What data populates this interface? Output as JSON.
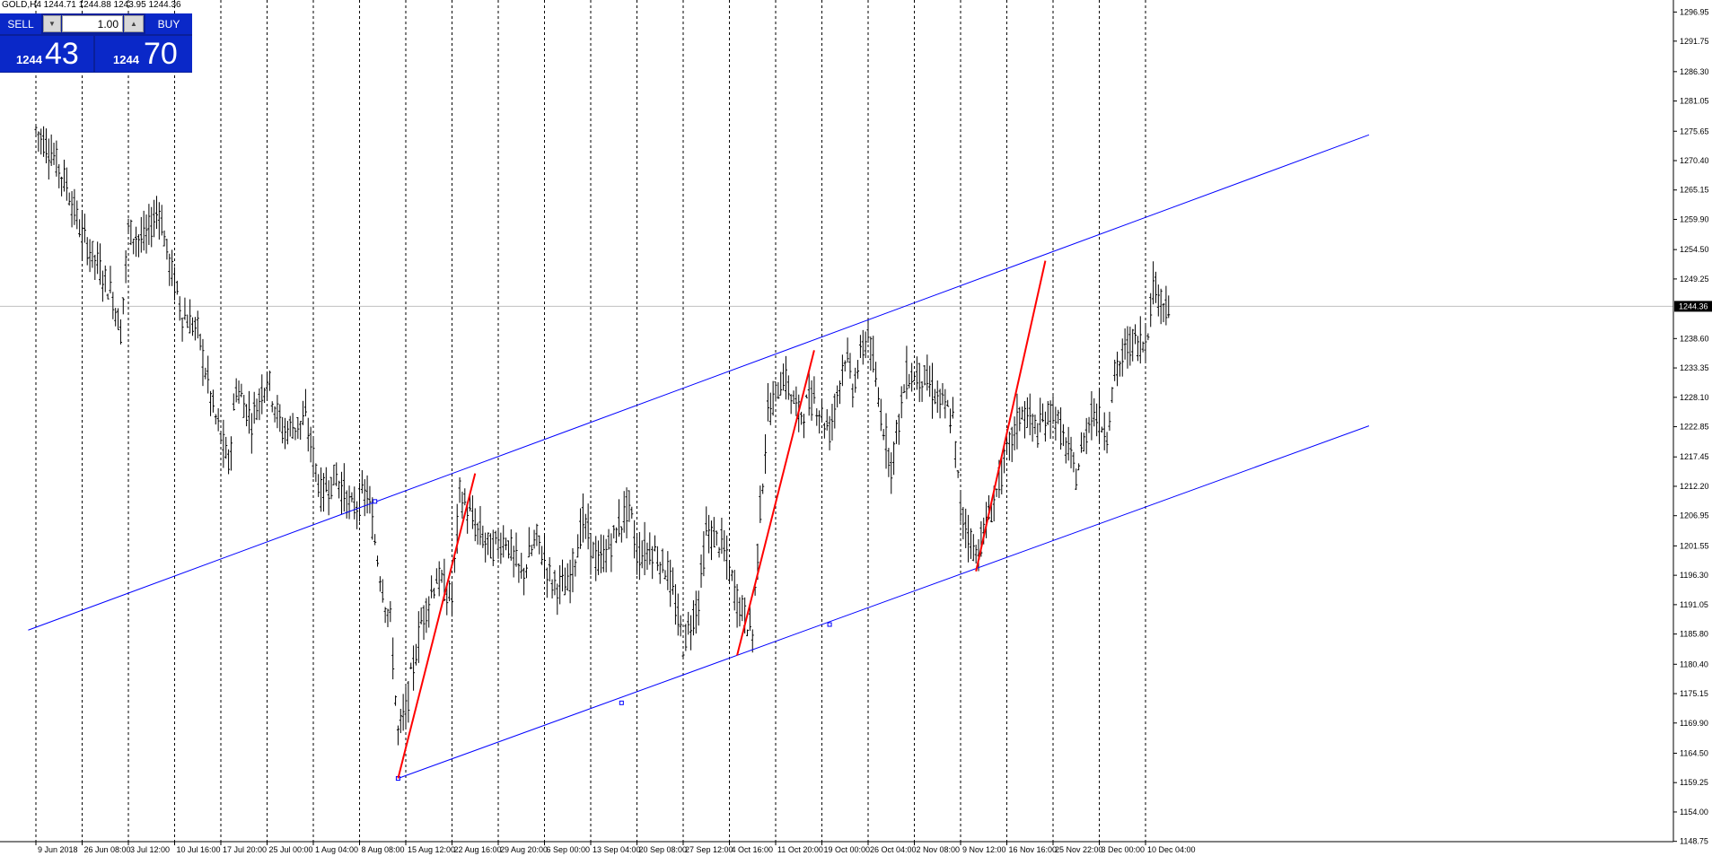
{
  "header": {
    "text": "GOLD,H4  1244.71 1244.88 1243.95 1244.36"
  },
  "trade_panel": {
    "sell_label": "SELL",
    "buy_label": "BUY",
    "lot_value": "1.00",
    "down_icon": "triangle-down-icon",
    "up_icon": "triangle-up-icon",
    "sell_price_small": "1244",
    "sell_price_big": "43",
    "buy_price_small": "1244",
    "buy_price_big": "70"
  },
  "colors": {
    "candles": "#000000",
    "channel": "#0000ff",
    "trend_red": "#ff0000",
    "grid": "#000000",
    "panel": "#0a28c8",
    "current_price_line": "#c0c0c0"
  },
  "chart_data": {
    "type": "line",
    "symbol": "GOLD",
    "timeframe": "H4",
    "ylim": [
      1148.7,
      1299.1
    ],
    "current_price": "1244.36",
    "current_price_value": 1244.36,
    "y_ticks": [
      "1296.95",
      "1291.75",
      "1286.30",
      "1281.05",
      "1275.65",
      "1270.40",
      "1265.15",
      "1259.90",
      "1254.50",
      "1249.25",
      "1238.60",
      "1233.35",
      "1228.10",
      "1222.85",
      "1217.45",
      "1212.20",
      "1206.95",
      "1201.55",
      "1196.30",
      "1191.05",
      "1185.80",
      "1180.40",
      "1175.15",
      "1169.90",
      "1164.50",
      "1159.25",
      "1154.00",
      "1148.75"
    ],
    "x_ticks": [
      "9 Jun 2018",
      "26 Jun 08:00",
      "3 Jul 12:00",
      "10 Jul 16:00",
      "17 Jul 20:00",
      "25 Jul 00:00",
      "1 Aug 04:00",
      "8 Aug 08:00",
      "15 Aug 12:00",
      "22 Aug 16:00",
      "29 Aug 20:00",
      "6 Sep 00:00",
      "13 Sep 04:00",
      "20 Sep 08:00",
      "27 Sep 12:00",
      "4 Oct 16:00",
      "11 Oct 20:00",
      "19 Oct 00:00",
      "26 Oct 04:00",
      "2 Nov 08:00",
      "9 Nov 12:00",
      "16 Nov 16:00",
      "25 Nov 22:00",
      "3 Dec 00:00",
      "10 Dec 04:00"
    ],
    "x_tick_index": [
      0,
      6,
      12,
      18,
      24,
      30,
      36,
      42,
      48,
      54,
      60,
      66,
      72,
      78,
      84,
      90,
      96,
      102,
      108,
      114,
      120,
      126,
      132,
      138,
      144
    ],
    "price_path": [
      [
        0,
        1276
      ],
      [
        2,
        1272
      ],
      [
        4,
        1266
      ],
      [
        6,
        1257
      ],
      [
        8,
        1252
      ],
      [
        10,
        1246
      ],
      [
        11,
        1240
      ],
      [
        12,
        1258
      ],
      [
        14,
        1256
      ],
      [
        16,
        1262
      ],
      [
        17,
        1254
      ],
      [
        19,
        1243
      ],
      [
        21,
        1240
      ],
      [
        23,
        1226
      ],
      [
        25,
        1216
      ],
      [
        26,
        1230
      ],
      [
        28,
        1224
      ],
      [
        30,
        1232
      ],
      [
        32,
        1222
      ],
      [
        35,
        1224
      ],
      [
        37,
        1211
      ],
      [
        39,
        1214
      ],
      [
        41,
        1208
      ],
      [
        43,
        1211
      ],
      [
        45,
        1194
      ],
      [
        46,
        1188
      ],
      [
        47,
        1168
      ],
      [
        48,
        1172
      ],
      [
        50,
        1188
      ],
      [
        52,
        1196
      ],
      [
        54,
        1192
      ],
      [
        55,
        1211
      ],
      [
        57,
        1205
      ],
      [
        59,
        1201
      ],
      [
        61,
        1203
      ],
      [
        63,
        1196
      ],
      [
        65,
        1203
      ],
      [
        67,
        1195
      ],
      [
        69,
        1194
      ],
      [
        71,
        1206
      ],
      [
        73,
        1198
      ],
      [
        75,
        1203
      ],
      [
        77,
        1209
      ],
      [
        78,
        1200
      ],
      [
        80,
        1201
      ],
      [
        82,
        1197
      ],
      [
        84,
        1184
      ],
      [
        86,
        1192
      ],
      [
        87,
        1204
      ],
      [
        89,
        1202
      ],
      [
        91,
        1192
      ],
      [
        93,
        1186
      ],
      [
        94,
        1208
      ],
      [
        95,
        1225
      ],
      [
        97,
        1232
      ],
      [
        99,
        1225
      ],
      [
        101,
        1228
      ],
      [
        103,
        1222
      ],
      [
        105,
        1236
      ],
      [
        106,
        1230
      ],
      [
        108,
        1240
      ],
      [
        109,
        1230
      ],
      [
        111,
        1216
      ],
      [
        113,
        1232
      ],
      [
        115,
        1232
      ],
      [
        117,
        1228
      ],
      [
        119,
        1224
      ],
      [
        120,
        1208
      ],
      [
        122,
        1200
      ],
      [
        124,
        1208
      ],
      [
        126,
        1218
      ],
      [
        128,
        1226
      ],
      [
        130,
        1222
      ],
      [
        132,
        1226
      ],
      [
        134,
        1218
      ],
      [
        135,
        1214
      ],
      [
        137,
        1226
      ],
      [
        139,
        1222
      ],
      [
        140,
        1232
      ],
      [
        142,
        1238
      ],
      [
        144,
        1238
      ],
      [
        145,
        1248
      ],
      [
        146,
        1246
      ],
      [
        147,
        1244
      ]
    ],
    "channel_upper": [
      [
        -1,
        1186.5
      ],
      [
        173,
        1275
      ]
    ],
    "channel_lower": [
      [
        47,
        1160
      ],
      [
        173,
        1223
      ]
    ],
    "channel_markers": [
      [
        44,
        1209.5
      ],
      [
        76,
        1173.5
      ],
      [
        103,
        1187.5
      ]
    ],
    "red_trends": [
      [
        [
          47,
          1160
        ],
        [
          57,
          1214.5
        ]
      ],
      [
        [
          91,
          1182
        ],
        [
          101,
          1236.5
        ]
      ],
      [
        [
          122,
          1197
        ],
        [
          131,
          1252.5
        ]
      ]
    ]
  }
}
